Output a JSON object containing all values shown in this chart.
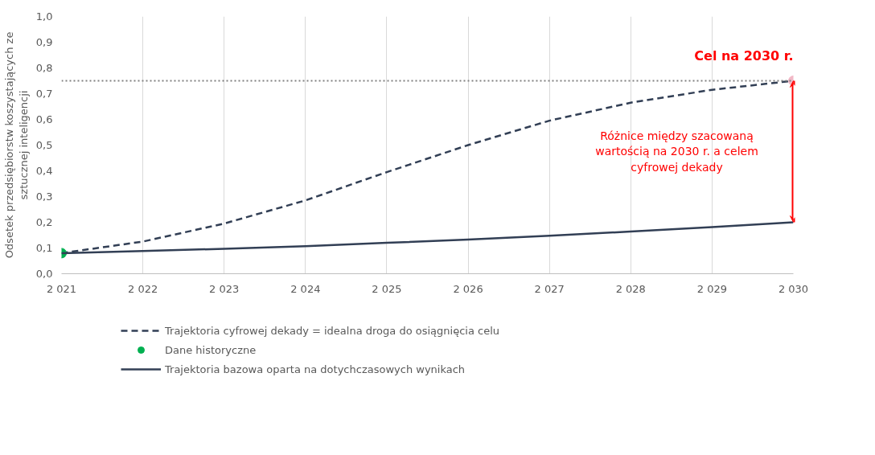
{
  "chart_data": {
    "type": "line",
    "ylabel": "Odsetek przedsiębiorstw koszystających ze sztucznej inteligencji",
    "x": [
      2021,
      2022,
      2023,
      2024,
      2025,
      2026,
      2027,
      2028,
      2029,
      2030
    ],
    "series": [
      {
        "name": "Trajektoria cyfrowej dekady = idealna droga do osiągnięcia celu",
        "color": "#323f55",
        "line_style": "dashed",
        "values": [
          0.08,
          0.125,
          0.195,
          0.285,
          0.395,
          0.5,
          0.595,
          0.665,
          0.715,
          0.75
        ]
      },
      {
        "name": "Dane historyczne",
        "type": "scatter",
        "color": "#00b050",
        "x": [
          2021
        ],
        "values": [
          0.08
        ]
      },
      {
        "name": "Trajektoria bazowa oparta na dotychczasowych wynikach",
        "color": "#323f55",
        "line_style": "solid",
        "values": [
          0.08,
          0.088,
          0.097,
          0.107,
          0.12,
          0.133,
          0.148,
          0.164,
          0.181,
          0.2
        ]
      },
      {
        "type": "scatter",
        "color": "#f2b8c6",
        "x": [
          2030
        ],
        "values": [
          0.75
        ]
      }
    ],
    "xlim": [
      2021,
      2030
    ],
    "xticks": [
      {
        "value": 2021,
        "label": "2 021"
      },
      {
        "value": 2022,
        "label": "2 022"
      },
      {
        "value": 2023,
        "label": "2 023"
      },
      {
        "value": 2024,
        "label": "2 024"
      },
      {
        "value": 2025,
        "label": "2 025"
      },
      {
        "value": 2026,
        "label": "2 026"
      },
      {
        "value": 2027,
        "label": "2 027"
      },
      {
        "value": 2028,
        "label": "2 028"
      },
      {
        "value": 2029,
        "label": "2 029"
      },
      {
        "value": 2030,
        "label": "2 030"
      }
    ],
    "ylim": [
      0,
      1
    ],
    "yticks": [
      {
        "value": 0,
        "label": "0,0"
      },
      {
        "value": 0.1,
        "label": "0,1"
      },
      {
        "value": 0.2,
        "label": "0,2"
      },
      {
        "value": 0.3,
        "label": "0,3"
      },
      {
        "value": 0.4,
        "label": "0,4"
      },
      {
        "value": 0.5,
        "label": "0,5"
      },
      {
        "value": 0.6,
        "label": "0,6"
      },
      {
        "value": 0.7,
        "label": "0,7"
      },
      {
        "value": 0.8,
        "label": "0,8"
      },
      {
        "value": 0.9,
        "label": "0,9"
      },
      {
        "value": 1,
        "label": "1,0"
      }
    ],
    "ref_lines": [
      {
        "axis": "y",
        "value": 0.75,
        "color": "#808080",
        "line_style": "dotted"
      }
    ],
    "annotations": [
      {
        "text": "Cel na 2030 r.",
        "x": 2030,
        "y": 0.75
      },
      "Różnice między szacowaną wartością na 2030 r. a celem cyfrowej dekady"
    ],
    "grid": "x",
    "legend": "bottom"
  }
}
